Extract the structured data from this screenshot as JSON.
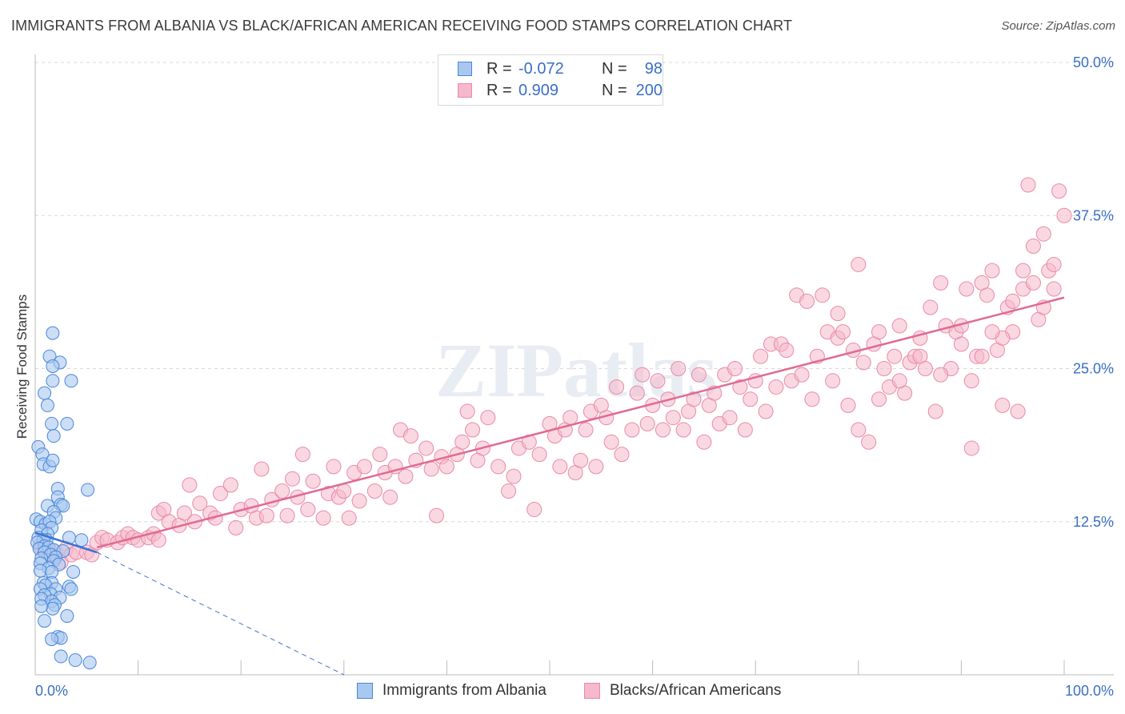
{
  "header": {
    "title": "IMMIGRANTS FROM ALBANIA VS BLACK/AFRICAN AMERICAN RECEIVING FOOD STAMPS CORRELATION CHART",
    "source": "Source: ZipAtlas.com"
  },
  "legend": {
    "rows": [
      {
        "r_label": "R =",
        "r_value": "-0.072",
        "n_label": "N =",
        "n_value": "98"
      },
      {
        "r_label": "R =",
        "r_value": "0.909",
        "n_label": "N =",
        "n_value": "200"
      }
    ]
  },
  "bottom_legend": [
    "Immigrants from Albania",
    "Blacks/African Americans"
  ],
  "colors": {
    "blue_fill": "#a9c8f0",
    "blue_stroke": "#4a86d8",
    "blue_line": "#3a74d0",
    "pink_fill": "#f6b8cb",
    "pink_stroke": "#e88aa8",
    "pink_line": "#e06a94",
    "tick_text": "#3a6fc4",
    "grid": "#d8d8d8"
  },
  "chart_data": {
    "type": "scatter",
    "title": "IMMIGRANTS FROM ALBANIA VS BLACK/AFRICAN AMERICAN RECEIVING FOOD STAMPS CORRELATION CHART",
    "xlabel": "",
    "ylabel": "Receiving Food Stamps",
    "xlim": [
      0,
      100
    ],
    "ylim": [
      0,
      50
    ],
    "x_tick_labels": [
      "0.0%",
      "100.0%"
    ],
    "y_ticks": [
      12.5,
      25.0,
      37.5,
      50.0
    ],
    "y_tick_labels": [
      "12.5%",
      "25.0%",
      "37.5%",
      "50.0%"
    ],
    "grid": true,
    "legend_position": "top-center",
    "watermark": "ZIPatlas",
    "series": [
      {
        "name": "Immigrants from Albania",
        "color": "#a9c8f0",
        "trend": {
          "x": [
            0,
            6
          ],
          "y": [
            11.6,
            10.0
          ],
          "extended_dashed_to": [
            30,
            0
          ]
        },
        "points": [
          [
            1.7,
            27.9
          ],
          [
            1.4,
            26.0
          ],
          [
            2.4,
            25.5
          ],
          [
            1.7,
            25.2
          ],
          [
            1.7,
            24.0
          ],
          [
            3.5,
            24.0
          ],
          [
            0.9,
            23.0
          ],
          [
            1.2,
            22.0
          ],
          [
            1.6,
            20.5
          ],
          [
            3.1,
            20.5
          ],
          [
            1.8,
            19.5
          ],
          [
            0.3,
            18.6
          ],
          [
            0.7,
            18.0
          ],
          [
            0.8,
            17.2
          ],
          [
            1.4,
            17.0
          ],
          [
            1.7,
            17.5
          ],
          [
            2.2,
            15.2
          ],
          [
            5.1,
            15.1
          ],
          [
            2.2,
            14.5
          ],
          [
            1.2,
            13.8
          ],
          [
            2.5,
            13.9
          ],
          [
            2.7,
            13.8
          ],
          [
            1.8,
            13.3
          ],
          [
            2.0,
            12.8
          ],
          [
            0.1,
            12.7
          ],
          [
            0.5,
            12.5
          ],
          [
            1.0,
            12.3
          ],
          [
            1.4,
            12.5
          ],
          [
            1.6,
            12.0
          ],
          [
            0.6,
            11.8
          ],
          [
            1.2,
            11.5
          ],
          [
            0.3,
            11.2
          ],
          [
            1.1,
            11.0
          ],
          [
            3.3,
            11.2
          ],
          [
            4.5,
            11.0
          ],
          [
            0.8,
            11.0
          ],
          [
            0.2,
            10.8
          ],
          [
            0.9,
            10.5
          ],
          [
            0.4,
            10.3
          ],
          [
            1.3,
            10.4
          ],
          [
            1.8,
            10.2
          ],
          [
            0.9,
            10.0
          ],
          [
            2.7,
            10.1
          ],
          [
            1.5,
            9.8
          ],
          [
            2.0,
            9.6
          ],
          [
            0.6,
            9.5
          ],
          [
            1.8,
            9.3
          ],
          [
            0.5,
            9.1
          ],
          [
            2.3,
            9.0
          ],
          [
            1.3,
            8.7
          ],
          [
            0.5,
            8.5
          ],
          [
            1.6,
            8.4
          ],
          [
            3.7,
            8.4
          ],
          [
            0.8,
            7.5
          ],
          [
            1.6,
            7.5
          ],
          [
            1.0,
            7.3
          ],
          [
            3.3,
            7.2
          ],
          [
            3.5,
            7.0
          ],
          [
            0.5,
            7.0
          ],
          [
            2.0,
            7.0
          ],
          [
            1.5,
            6.6
          ],
          [
            0.9,
            6.5
          ],
          [
            2.4,
            6.3
          ],
          [
            0.6,
            6.2
          ],
          [
            1.6,
            6.0
          ],
          [
            1.9,
            5.7
          ],
          [
            1.7,
            5.4
          ],
          [
            0.6,
            5.6
          ],
          [
            3.1,
            4.8
          ],
          [
            0.9,
            4.4
          ],
          [
            2.2,
            3.1
          ],
          [
            2.5,
            3.0
          ],
          [
            1.6,
            2.9
          ],
          [
            2.5,
            1.5
          ],
          [
            3.9,
            1.2
          ],
          [
            5.3,
            1.0
          ]
        ]
      },
      {
        "name": "Blacks/African Americans",
        "color": "#f6b8cb",
        "trend": {
          "x": [
            6,
            100
          ],
          "y": [
            10.4,
            30.8
          ]
        },
        "points": [
          [
            0.5,
            10.5
          ],
          [
            1.0,
            10.2
          ],
          [
            1.5,
            9.8
          ],
          [
            2.0,
            10.0
          ],
          [
            2.5,
            9.2
          ],
          [
            3.0,
            10.3
          ],
          [
            3.5,
            9.8
          ],
          [
            4.0,
            10.0
          ],
          [
            5.0,
            10.0
          ],
          [
            5.5,
            9.8
          ],
          [
            6.0,
            10.8
          ],
          [
            6.5,
            11.2
          ],
          [
            7.0,
            11.0
          ],
          [
            8.0,
            10.8
          ],
          [
            8.5,
            11.2
          ],
          [
            9.0,
            11.5
          ],
          [
            9.5,
            11.2
          ],
          [
            10.0,
            11.0
          ],
          [
            11.0,
            11.2
          ],
          [
            11.5,
            11.5
          ],
          [
            12.0,
            11.0
          ],
          [
            12.0,
            13.2
          ],
          [
            12.5,
            13.5
          ],
          [
            13.0,
            12.5
          ],
          [
            14.0,
            12.2
          ],
          [
            14.5,
            13.2
          ],
          [
            15.0,
            15.5
          ],
          [
            15.5,
            12.5
          ],
          [
            16.0,
            14.0
          ],
          [
            17.0,
            13.2
          ],
          [
            17.5,
            12.8
          ],
          [
            18.0,
            14.8
          ],
          [
            19.0,
            15.5
          ],
          [
            19.5,
            12.0
          ],
          [
            20.0,
            13.5
          ],
          [
            21.0,
            13.8
          ],
          [
            21.5,
            12.8
          ],
          [
            22.0,
            16.8
          ],
          [
            22.5,
            13.0
          ],
          [
            23.0,
            14.3
          ],
          [
            24.0,
            15.0
          ],
          [
            24.5,
            13.0
          ],
          [
            25.0,
            16.0
          ],
          [
            25.5,
            14.5
          ],
          [
            26.0,
            18.0
          ],
          [
            26.5,
            13.5
          ],
          [
            27.0,
            15.8
          ],
          [
            28.0,
            12.8
          ],
          [
            28.5,
            14.8
          ],
          [
            29.0,
            17.0
          ],
          [
            29.5,
            14.5
          ],
          [
            30.0,
            15.0
          ],
          [
            30.5,
            12.8
          ],
          [
            31.0,
            16.5
          ],
          [
            31.5,
            14.2
          ],
          [
            32.0,
            17.0
          ],
          [
            33.0,
            15.0
          ],
          [
            33.5,
            18.0
          ],
          [
            34.0,
            16.5
          ],
          [
            34.5,
            14.5
          ],
          [
            35.0,
            17.0
          ],
          [
            35.5,
            20.0
          ],
          [
            36.0,
            16.2
          ],
          [
            36.5,
            19.5
          ],
          [
            37.0,
            17.5
          ],
          [
            38.0,
            18.5
          ],
          [
            38.5,
            16.8
          ],
          [
            39.0,
            13.0
          ],
          [
            39.5,
            17.8
          ],
          [
            40.0,
            17.0
          ],
          [
            41.0,
            18.0
          ],
          [
            41.5,
            19.0
          ],
          [
            42.0,
            21.5
          ],
          [
            42.5,
            20.0
          ],
          [
            43.0,
            17.5
          ],
          [
            43.5,
            18.5
          ],
          [
            44.0,
            21.0
          ],
          [
            45.0,
            17.0
          ],
          [
            46.0,
            15.0
          ],
          [
            46.5,
            16.2
          ],
          [
            47.0,
            18.5
          ],
          [
            48.0,
            19.0
          ],
          [
            48.5,
            13.5
          ],
          [
            49.0,
            18.0
          ],
          [
            50.0,
            20.5
          ],
          [
            50.5,
            19.5
          ],
          [
            51.0,
            17.0
          ],
          [
            51.5,
            20.0
          ],
          [
            52.0,
            21.0
          ],
          [
            52.5,
            16.5
          ],
          [
            53.0,
            17.5
          ],
          [
            53.5,
            20.0
          ],
          [
            54.0,
            21.5
          ],
          [
            54.5,
            17.0
          ],
          [
            55.0,
            22.0
          ],
          [
            55.5,
            21.0
          ],
          [
            56.0,
            19.0
          ],
          [
            56.5,
            23.5
          ],
          [
            57.0,
            18.0
          ],
          [
            58.0,
            20.0
          ],
          [
            58.5,
            23.0
          ],
          [
            59.0,
            24.5
          ],
          [
            59.5,
            20.5
          ],
          [
            60.0,
            22.0
          ],
          [
            60.5,
            24.0
          ],
          [
            61.0,
            20.0
          ],
          [
            61.5,
            22.5
          ],
          [
            62.0,
            21.0
          ],
          [
            62.5,
            25.0
          ],
          [
            63.0,
            20.0
          ],
          [
            63.5,
            21.5
          ],
          [
            64.0,
            22.5
          ],
          [
            64.5,
            24.5
          ],
          [
            65.0,
            19.0
          ],
          [
            65.5,
            22.0
          ],
          [
            66.0,
            23.0
          ],
          [
            66.5,
            20.5
          ],
          [
            67.0,
            24.5
          ],
          [
            67.5,
            21.0
          ],
          [
            68.0,
            25.0
          ],
          [
            68.5,
            23.5
          ],
          [
            69.0,
            20.0
          ],
          [
            69.5,
            22.5
          ],
          [
            70.0,
            24.0
          ],
          [
            70.5,
            26.0
          ],
          [
            71.0,
            21.5
          ],
          [
            71.5,
            27.0
          ],
          [
            72.0,
            23.5
          ],
          [
            72.5,
            27.0
          ],
          [
            73.0,
            26.5
          ],
          [
            73.5,
            24.0
          ],
          [
            74.0,
            31.0
          ],
          [
            74.5,
            24.5
          ],
          [
            75.0,
            30.5
          ],
          [
            75.5,
            22.5
          ],
          [
            76.0,
            26.0
          ],
          [
            76.5,
            31.0
          ],
          [
            77.0,
            28.0
          ],
          [
            77.5,
            24.0
          ],
          [
            78.0,
            27.5
          ],
          [
            78.5,
            28.0
          ],
          [
            79.0,
            22.0
          ],
          [
            79.5,
            26.5
          ],
          [
            80.0,
            33.5
          ],
          [
            80.5,
            25.5
          ],
          [
            81.0,
            19.0
          ],
          [
            81.5,
            27.0
          ],
          [
            82.0,
            22.5
          ],
          [
            82.5,
            25.0
          ],
          [
            83.0,
            23.5
          ],
          [
            83.5,
            26.0
          ],
          [
            84.0,
            28.5
          ],
          [
            84.5,
            23.0
          ],
          [
            85.0,
            25.5
          ],
          [
            85.5,
            26.0
          ],
          [
            86.0,
            26.0
          ],
          [
            86.5,
            25.0
          ],
          [
            87.0,
            30.0
          ],
          [
            87.5,
            21.5
          ],
          [
            88.0,
            32.0
          ],
          [
            88.5,
            28.5
          ],
          [
            89.0,
            25.0
          ],
          [
            89.5,
            28.0
          ],
          [
            90.0,
            28.5
          ],
          [
            90.5,
            31.5
          ],
          [
            91.0,
            18.5
          ],
          [
            91.5,
            26.0
          ],
          [
            92.0,
            32.0
          ],
          [
            92.5,
            31.0
          ],
          [
            93.0,
            33.0
          ],
          [
            93.5,
            26.5
          ],
          [
            94.0,
            22.0
          ],
          [
            94.5,
            30.0
          ],
          [
            95.0,
            28.0
          ],
          [
            95.5,
            21.5
          ],
          [
            96.0,
            31.5
          ],
          [
            96.5,
            40.0
          ],
          [
            97.0,
            35.0
          ],
          [
            97.5,
            29.0
          ],
          [
            98.0,
            36.0
          ],
          [
            98.5,
            33.0
          ],
          [
            99.0,
            31.5
          ],
          [
            99.5,
            39.5
          ],
          [
            100.0,
            37.5
          ],
          [
            99.0,
            33.5
          ],
          [
            98.0,
            30.0
          ],
          [
            97.0,
            32.0
          ],
          [
            96.0,
            33.0
          ],
          [
            95.0,
            30.5
          ],
          [
            94.0,
            27.5
          ],
          [
            93.0,
            28.0
          ],
          [
            92.0,
            26.0
          ],
          [
            91.0,
            24.0
          ],
          [
            90.0,
            27.0
          ],
          [
            88.0,
            24.5
          ],
          [
            86.0,
            27.5
          ],
          [
            84.0,
            24.0
          ],
          [
            82.0,
            28.0
          ],
          [
            80.0,
            20.0
          ],
          [
            78.0,
            29.5
          ]
        ]
      }
    ]
  }
}
